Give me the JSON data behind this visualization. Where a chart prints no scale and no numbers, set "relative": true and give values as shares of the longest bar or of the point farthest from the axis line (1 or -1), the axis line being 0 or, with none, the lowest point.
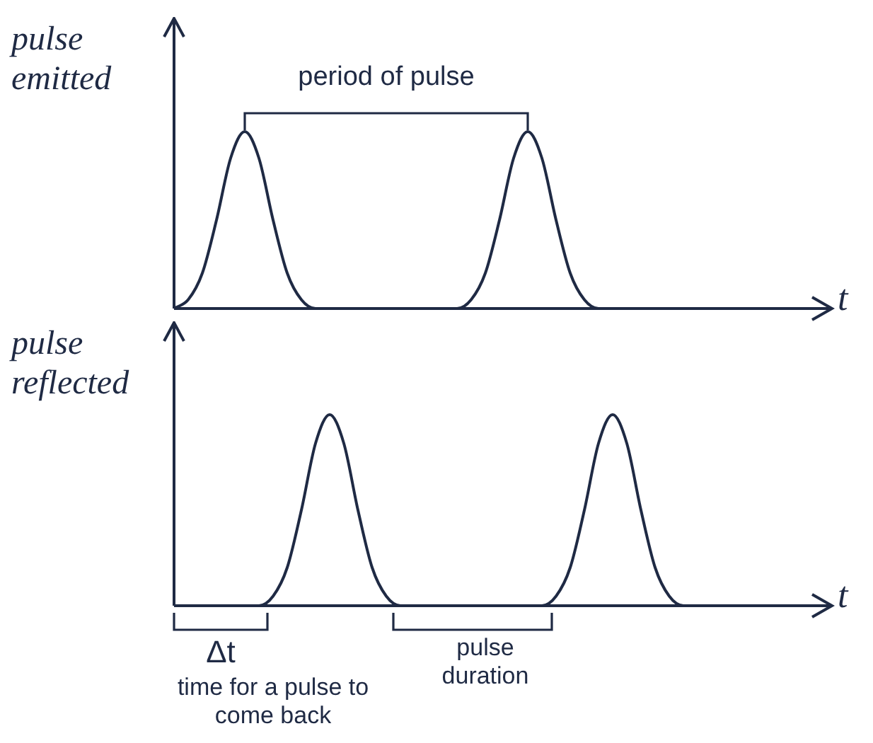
{
  "chart_data": [
    {
      "type": "line",
      "ylabel": "pulse emitted",
      "xlabel": "t",
      "relative": true,
      "color": "#1f2a44",
      "marker": "none",
      "legend": false,
      "categories": [
        null,
        null,
        null,
        null,
        null,
        null,
        null,
        null,
        null,
        null,
        null,
        null,
        null,
        null,
        null,
        null,
        null,
        null,
        null,
        null,
        null,
        null,
        null,
        null,
        null,
        null,
        null,
        null,
        null,
        null,
        null,
        null,
        null,
        null,
        null,
        null,
        null,
        null,
        null,
        null,
        null,
        null,
        null,
        null,
        null,
        null
      ],
      "values": [
        0,
        0.05,
        0.2,
        0.5,
        0.85,
        1,
        0.85,
        0.5,
        0.2,
        0.05,
        0,
        0,
        0,
        0,
        0,
        0,
        0,
        0,
        0,
        0,
        0,
        0.05,
        0.2,
        0.5,
        0.85,
        1,
        0.85,
        0.5,
        0.2,
        0.05,
        0,
        0,
        0,
        0,
        0,
        0,
        0,
        0,
        0,
        0,
        0,
        0,
        0,
        0,
        0,
        0
      ],
      "annotations": [
        "period of pulse"
      ]
    },
    {
      "type": "line",
      "ylabel": "pulse reflected",
      "xlabel": "t",
      "relative": true,
      "color": "#1f2a44",
      "marker": "none",
      "legend": false,
      "categories": [
        null,
        null,
        null,
        null,
        null,
        null,
        null,
        null,
        null,
        null,
        null,
        null,
        null,
        null,
        null,
        null,
        null,
        null,
        null,
        null,
        null,
        null,
        null,
        null,
        null,
        null,
        null,
        null,
        null,
        null,
        null,
        null,
        null,
        null,
        null,
        null,
        null,
        null,
        null,
        null,
        null,
        null,
        null,
        null,
        null,
        null
      ],
      "values": [
        0,
        0,
        0,
        0,
        0,
        0,
        0,
        0.05,
        0.2,
        0.5,
        0.85,
        1,
        0.85,
        0.5,
        0.2,
        0.05,
        0,
        0,
        0,
        0,
        0,
        0,
        0,
        0,
        0,
        0,
        0,
        0.05,
        0.2,
        0.5,
        0.85,
        1,
        0.85,
        0.5,
        0.2,
        0.05,
        0,
        0,
        0,
        0,
        0,
        0,
        0,
        0,
        0,
        0
      ],
      "annotations": [
        "Δt",
        "time for a pulse to come back",
        "pulse duration"
      ]
    }
  ]
}
